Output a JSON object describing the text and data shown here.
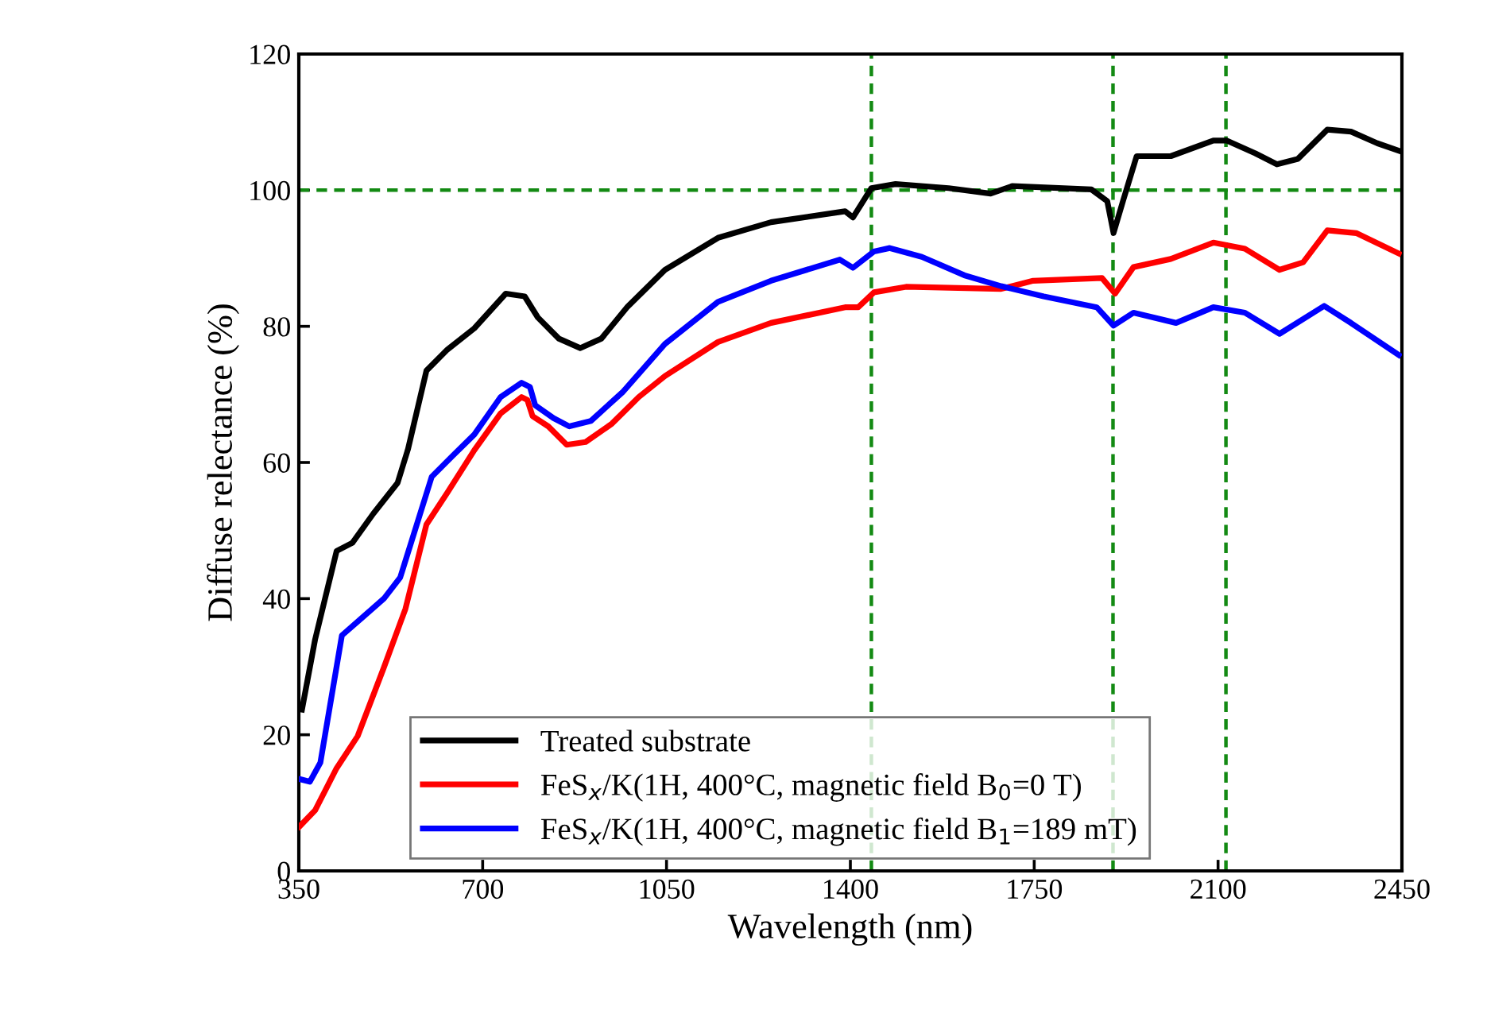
{
  "chart_data": {
    "type": "line",
    "xlabel": "Wavelength (nm)",
    "ylabel": "Diffuse relectance (%)",
    "xlim": [
      350,
      2450
    ],
    "xticks": [
      350,
      700,
      1050,
      1400,
      1750,
      2100,
      2450
    ],
    "ylim": [
      0,
      120
    ],
    "yticks": [
      0,
      20,
      40,
      60,
      80,
      100,
      120
    ],
    "grid": false,
    "legend": "bottom left",
    "marker": "none",
    "line_style": "solid",
    "ref_lines": [
      {
        "axis": "x",
        "value": 1440,
        "color": "#138a13",
        "line_style": "dashed"
      },
      {
        "axis": "x",
        "value": 1900,
        "color": "#138a13",
        "line_style": "dashed"
      },
      {
        "axis": "x",
        "value": 2115,
        "color": "#138a13",
        "line_style": "dashed"
      },
      {
        "axis": "y",
        "value": 100,
        "color": "#138a13",
        "line_style": "dashed"
      }
    ],
    "series": [
      {
        "name": "Treated substrate",
        "color": "#000000",
        "x": [
          356,
          381,
          422,
          452,
          492,
          538,
          558,
          593,
          633,
          684,
          744,
          780,
          805,
          845,
          886,
          926,
          976,
          1047,
          1148,
          1249,
          1390,
          1405,
          1440,
          1486,
          1587,
          1667,
          1708,
          1859,
          1889,
          1901,
          1919,
          1945,
          2010,
          2091,
          2116,
          2171,
          2212,
          2252,
          2308,
          2353,
          2403,
          2444
        ],
        "values": [
          23.7,
          34,
          47,
          48.2,
          52.5,
          57,
          62,
          73.5,
          76.6,
          79.7,
          84.8,
          84.4,
          81.3,
          78.2,
          76.8,
          78.2,
          82.9,
          88.3,
          93,
          95.3,
          96.9,
          96,
          100.3,
          100.9,
          100.3,
          99.5,
          100.6,
          100.1,
          98.4,
          93.7,
          98.4,
          105,
          105,
          107.3,
          107.3,
          105.4,
          103.8,
          104.6,
          108.9,
          108.6,
          106.9,
          105.8
        ]
      },
      {
        "name": "FeS$_{x}$/K(1H, 400°C, magnetic field B$_{0}$=0 T)",
        "color": "#ff0000",
        "x": [
          351,
          381,
          422,
          462,
          512,
          553,
          593,
          633,
          684,
          734,
          774,
          785,
          795,
          825,
          860,
          896,
          946,
          997,
          1047,
          1148,
          1249,
          1390,
          1415,
          1445,
          1506,
          1687,
          1748,
          1879,
          1904,
          1939,
          2010,
          2091,
          2151,
          2217,
          2262,
          2308,
          2363,
          2444
        ],
        "values": [
          6.5,
          8.9,
          15.1,
          19.8,
          29.9,
          38.5,
          50.9,
          55.6,
          61.8,
          67.2,
          69.6,
          69.2,
          66.8,
          65.3,
          62.6,
          63,
          65.7,
          69.6,
          72.7,
          77.7,
          80.5,
          82.8,
          82.8,
          85,
          85.8,
          85.5,
          86.7,
          87.1,
          84.8,
          88.7,
          89.9,
          92.3,
          91.4,
          88.3,
          89.4,
          94.1,
          93.7,
          90.7
        ]
      },
      {
        "name": "FeS$_{x}$/K(1H, 400°C, magnetic field B$_{1}$=189 mT)",
        "color": "#0000ff",
        "x": [
          351,
          371,
          391,
          432,
          472,
          512,
          543,
          603,
          643,
          684,
          734,
          774,
          790,
          800,
          835,
          865,
          906,
          966,
          1047,
          1148,
          1249,
          1380,
          1405,
          1445,
          1475,
          1536,
          1617,
          1687,
          1768,
          1869,
          1901,
          1939,
          2020,
          2091,
          2151,
          2217,
          2302,
          2353,
          2444
        ],
        "values": [
          13.5,
          13.1,
          15.9,
          34.6,
          37.3,
          40,
          43.1,
          57.9,
          61,
          64.1,
          69.6,
          71.7,
          71.1,
          68.4,
          66.5,
          65.3,
          66.1,
          70.3,
          77.4,
          83.6,
          86.7,
          89.8,
          88.6,
          91,
          91.5,
          90.2,
          87.5,
          85.9,
          84.4,
          82.8,
          80.1,
          82,
          80.5,
          82.8,
          82,
          78.9,
          83,
          80.5,
          75.8
        ]
      }
    ]
  }
}
